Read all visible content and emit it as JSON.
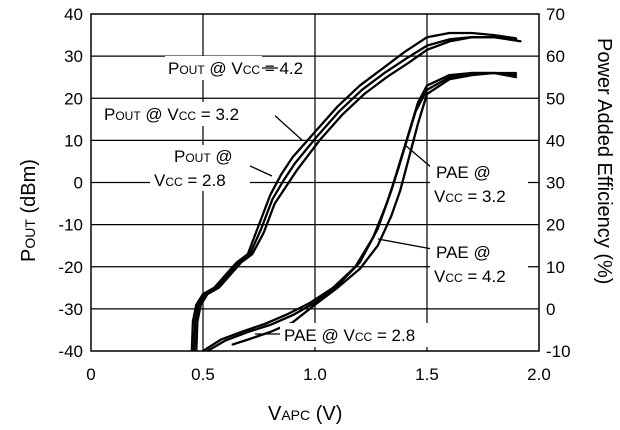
{
  "chart_data": {
    "type": "line",
    "xlabel_main": "V",
    "xlabel_sub": "APC",
    "xlabel_tail": " (V)",
    "ylabel_left_main": "P",
    "ylabel_left_sub": "OUT",
    "ylabel_left_tail": " (dBm)",
    "ylabel_right": "Power Added Efficiency (%)",
    "xlim": [
      0,
      2.0
    ],
    "ylim_left": [
      -40,
      40
    ],
    "ylim_right": [
      -10,
      70
    ],
    "grid": true,
    "x_ticks": [
      "0",
      "0.5",
      "1.0",
      "1.5",
      "2.0"
    ],
    "y_ticks_left": [
      "40",
      "30",
      "20",
      "10",
      "0",
      "-10",
      "-20",
      "-30",
      "-40"
    ],
    "y_ticks_right": [
      "70",
      "60",
      "50",
      "40",
      "30",
      "20",
      "10",
      "0",
      "-10"
    ],
    "series": [
      {
        "axis": "left",
        "points": [
          [
            0.45,
            -40
          ],
          [
            0.455,
            -33
          ],
          [
            0.47,
            -29
          ],
          [
            0.5,
            -26.5
          ],
          [
            0.55,
            -25
          ],
          [
            0.6,
            -22
          ],
          [
            0.65,
            -19
          ],
          [
            0.7,
            -17
          ],
          [
            0.75,
            -10
          ],
          [
            0.8,
            -3
          ],
          [
            0.85,
            2
          ],
          [
            0.9,
            6
          ],
          [
            1.0,
            12
          ],
          [
            1.1,
            18
          ],
          [
            1.2,
            23
          ],
          [
            1.3,
            27
          ],
          [
            1.4,
            31
          ],
          [
            1.5,
            34.5
          ],
          [
            1.6,
            35.5
          ],
          [
            1.7,
            35.5
          ],
          [
            1.8,
            35
          ],
          [
            1.9,
            34.2
          ]
        ]
      },
      {
        "axis": "left",
        "points": [
          [
            0.46,
            -40
          ],
          [
            0.465,
            -33
          ],
          [
            0.48,
            -29
          ],
          [
            0.51,
            -26.5
          ],
          [
            0.56,
            -25
          ],
          [
            0.61,
            -22
          ],
          [
            0.66,
            -19
          ],
          [
            0.71,
            -17
          ],
          [
            0.76,
            -11
          ],
          [
            0.81,
            -4
          ],
          [
            0.86,
            0.5
          ],
          [
            0.91,
            4.5
          ],
          [
            1.01,
            11
          ],
          [
            1.11,
            17
          ],
          [
            1.21,
            22
          ],
          [
            1.31,
            26
          ],
          [
            1.41,
            29.5
          ],
          [
            1.5,
            32.5
          ],
          [
            1.6,
            34
          ],
          [
            1.7,
            34.5
          ],
          [
            1.8,
            34.5
          ],
          [
            1.9,
            34
          ]
        ]
      },
      {
        "axis": "left",
        "points": [
          [
            0.47,
            -40
          ],
          [
            0.475,
            -33
          ],
          [
            0.49,
            -29
          ],
          [
            0.52,
            -26.5
          ],
          [
            0.57,
            -25
          ],
          [
            0.62,
            -22
          ],
          [
            0.67,
            -19
          ],
          [
            0.72,
            -17
          ],
          [
            0.77,
            -12
          ],
          [
            0.82,
            -5
          ],
          [
            0.87,
            -1
          ],
          [
            0.92,
            3
          ],
          [
            1.02,
            10
          ],
          [
            1.12,
            16
          ],
          [
            1.22,
            21
          ],
          [
            1.32,
            25
          ],
          [
            1.42,
            28.5
          ],
          [
            1.5,
            31.5
          ],
          [
            1.6,
            33.5
          ],
          [
            1.7,
            34.5
          ],
          [
            1.8,
            34.5
          ],
          [
            1.92,
            33.5
          ]
        ]
      },
      {
        "axis": "right",
        "points": [
          [
            0.52,
            -10
          ],
          [
            0.6,
            -7.5
          ],
          [
            0.7,
            -5.5
          ],
          [
            0.8,
            -3.8
          ],
          [
            0.9,
            -1.5
          ],
          [
            1.0,
            1.5
          ],
          [
            1.1,
            5.5
          ],
          [
            1.2,
            11
          ],
          [
            1.28,
            19
          ],
          [
            1.34,
            28
          ],
          [
            1.38,
            35
          ],
          [
            1.42,
            42
          ],
          [
            1.46,
            49
          ],
          [
            1.5,
            53
          ],
          [
            1.6,
            55.5
          ],
          [
            1.7,
            56
          ],
          [
            1.8,
            56
          ],
          [
            1.9,
            55
          ]
        ]
      },
      {
        "axis": "right",
        "points": [
          [
            0.5,
            -10
          ],
          [
            0.58,
            -7.3
          ],
          [
            0.68,
            -5.3
          ],
          [
            0.78,
            -3.5
          ],
          [
            0.88,
            -1.2
          ],
          [
            0.98,
            1.5
          ],
          [
            1.08,
            5
          ],
          [
            1.18,
            10
          ],
          [
            1.26,
            17
          ],
          [
            1.32,
            25
          ],
          [
            1.37,
            33
          ],
          [
            1.41,
            40
          ],
          [
            1.45,
            47
          ],
          [
            1.5,
            52
          ],
          [
            1.6,
            55
          ],
          [
            1.7,
            56
          ],
          [
            1.8,
            56
          ],
          [
            1.9,
            55.5
          ]
        ]
      },
      {
        "axis": "right",
        "points": [
          [
            0.63,
            -8.5
          ],
          [
            0.7,
            -7.3
          ],
          [
            0.8,
            -5.5
          ],
          [
            0.9,
            -3.2
          ],
          [
            1.0,
            1
          ],
          [
            1.1,
            5
          ],
          [
            1.2,
            9.5
          ],
          [
            1.28,
            15
          ],
          [
            1.34,
            22
          ],
          [
            1.38,
            28
          ],
          [
            1.42,
            36
          ],
          [
            1.46,
            44
          ],
          [
            1.5,
            51
          ],
          [
            1.6,
            54.5
          ],
          [
            1.7,
            55.5
          ],
          [
            1.8,
            56
          ],
          [
            1.9,
            56
          ]
        ]
      }
    ],
    "annotations": [
      {
        "main": "P",
        "sub": "OUT",
        "rest": " @ V",
        "sub2": "CC",
        "rest2": " = 4.2"
      },
      {
        "main": "P",
        "sub": "OUT",
        "rest": " @ V",
        "sub2": "CC",
        "rest2": " = 3.2"
      },
      {
        "main": "P",
        "sub": "OUT",
        "rest": " @",
        "line2_main": "V",
        "line2_sub": "CC",
        "line2_rest": " = 2.8"
      },
      {
        "line1": "PAE @",
        "line2_main": "V",
        "line2_sub": "CC",
        "line2_rest": " = 3.2"
      },
      {
        "line1": "PAE @",
        "line2_main": "V",
        "line2_sub": "CC",
        "line2_rest": " = 4.2"
      },
      {
        "main": "PAE @ V",
        "sub": "CC",
        "rest": " = 2.8"
      }
    ]
  }
}
